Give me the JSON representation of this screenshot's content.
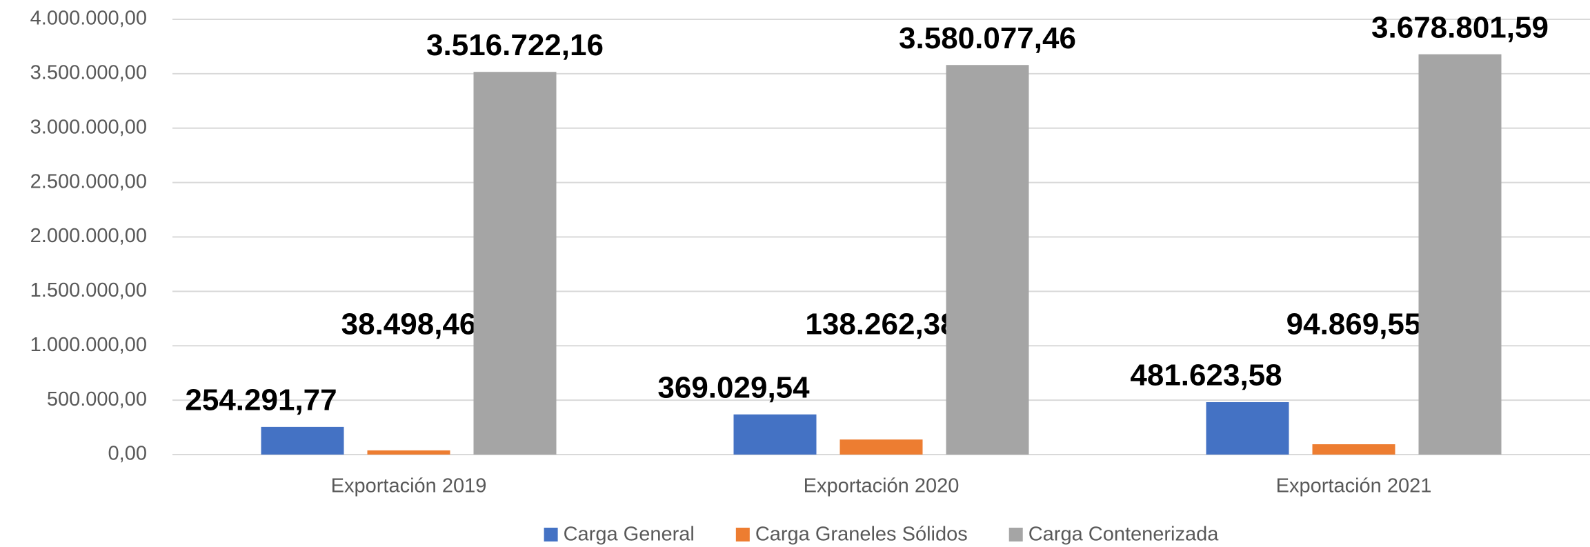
{
  "chart_data": {
    "type": "bar",
    "categories": [
      "Exportación 2019",
      "Exportación 2020",
      "Exportación 2021"
    ],
    "series": [
      {
        "name": "Carga General",
        "color": "#4472c4",
        "values": [
          254291.77,
          369029.54,
          481623.58
        ],
        "value_labels": [
          "254.291,77",
          "369.029,54",
          "481.623,58"
        ]
      },
      {
        "name": "Carga Graneles Sólidos",
        "color": "#ed7d31",
        "values": [
          38498.46,
          138262.38,
          94869.55
        ],
        "value_labels": [
          "38.498,46",
          "138.262,38",
          "94.869,55"
        ]
      },
      {
        "name": "Carga Contenerizada",
        "color": "#a5a5a5",
        "values": [
          3516722.16,
          3580077.46,
          3678801.59
        ],
        "value_labels": [
          "3.516.722,16",
          "3.580.077,46",
          "3.678.801,59"
        ]
      }
    ],
    "ylim": [
      0,
      4000000
    ],
    "yticks": [
      {
        "value": 0,
        "label": "0,00"
      },
      {
        "value": 500000,
        "label": "500.000,00"
      },
      {
        "value": 1000000,
        "label": "1.000.000,00"
      },
      {
        "value": 1500000,
        "label": "1.500.000,00"
      },
      {
        "value": 2000000,
        "label": "2.000.000,00"
      },
      {
        "value": 2500000,
        "label": "2.500.000,00"
      },
      {
        "value": 3000000,
        "label": "3.000.000,00"
      },
      {
        "value": 3500000,
        "label": "3.500.000,00"
      },
      {
        "value": 4000000,
        "label": "4.000.000,00"
      }
    ],
    "grid": true,
    "legend": "bottom"
  }
}
